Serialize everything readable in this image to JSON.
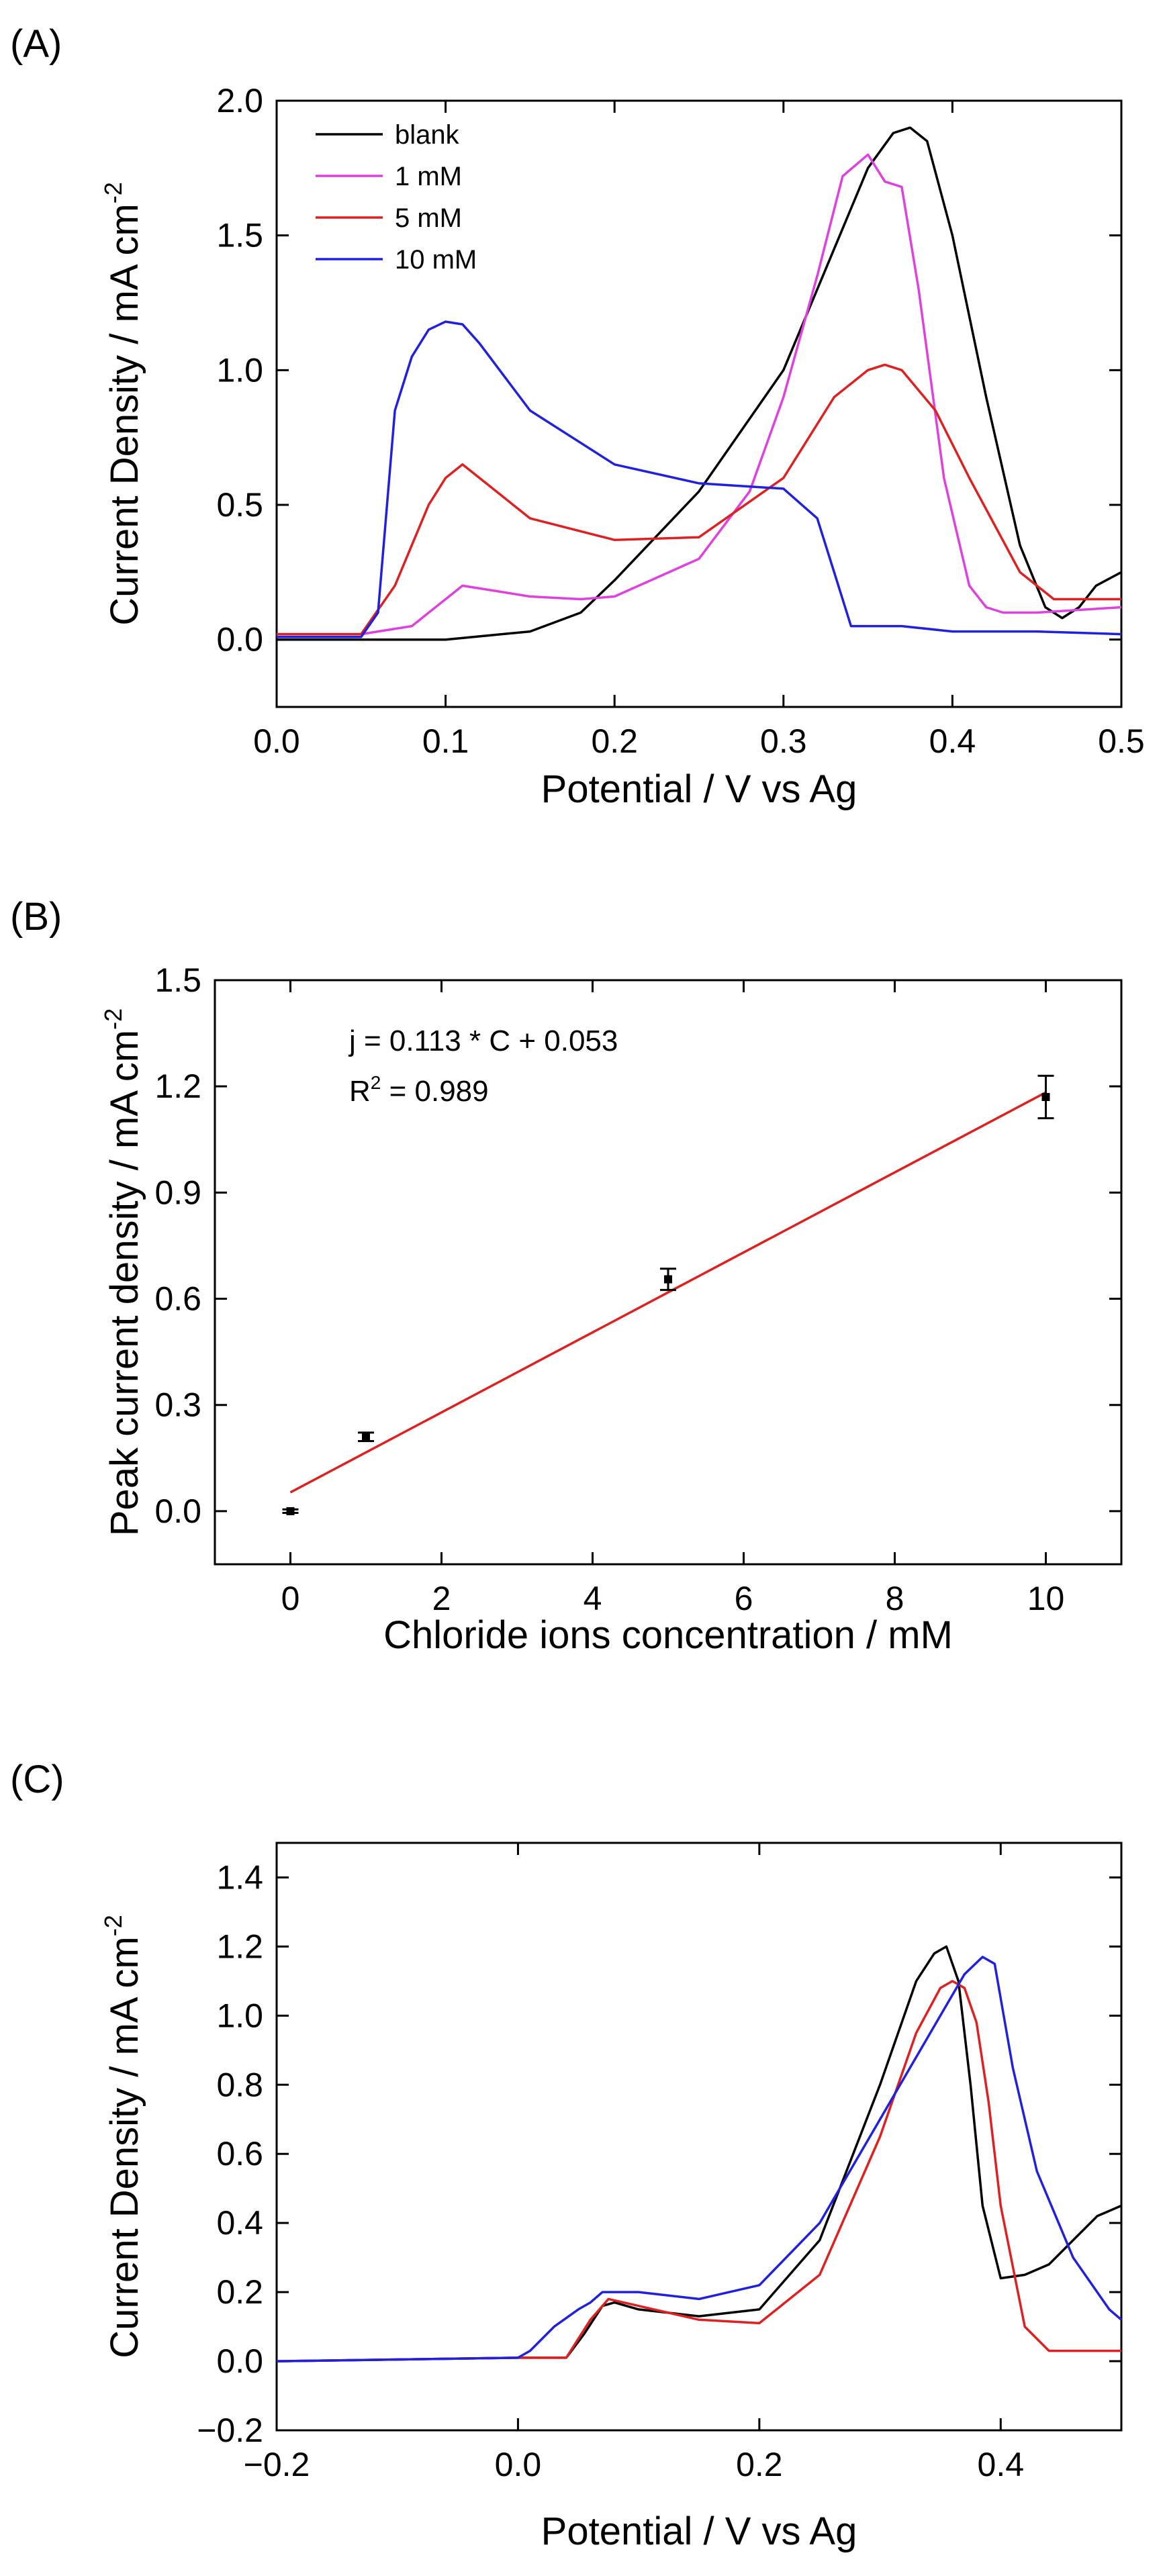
{
  "chart_data": [
    {
      "type": "line",
      "panel_label": "(A)",
      "xlabel": "Potential   / V vs Ag",
      "ylabel": "Current Density   /   mA cm",
      "ylabel_exp": "-2",
      "xlim": [
        0,
        0.5
      ],
      "ylim": [
        -0.25,
        2.0
      ],
      "xticks": [
        "0.0",
        "0.1",
        "0.2",
        "0.3",
        "0.4",
        "0.5"
      ],
      "yticks": [
        "0.0",
        "0.5",
        "1.0",
        "1.5",
        "2.0"
      ],
      "legend_position": "top-left",
      "series": [
        {
          "name": "blank",
          "color": "#000000",
          "x": [
            0,
            0.05,
            0.1,
            0.15,
            0.18,
            0.2,
            0.25,
            0.3,
            0.33,
            0.35,
            0.365,
            0.375,
            0.385,
            0.4,
            0.42,
            0.44,
            0.455,
            0.465,
            0.475,
            0.485,
            0.5
          ],
          "y": [
            0,
            0,
            0,
            0.03,
            0.1,
            0.22,
            0.55,
            1.0,
            1.45,
            1.75,
            1.88,
            1.9,
            1.85,
            1.5,
            0.9,
            0.35,
            0.12,
            0.08,
            0.12,
            0.2,
            0.25
          ]
        },
        {
          "name": "1 mM",
          "color": "#e040e0",
          "x": [
            0,
            0.05,
            0.08,
            0.1,
            0.11,
            0.13,
            0.15,
            0.18,
            0.2,
            0.25,
            0.28,
            0.3,
            0.32,
            0.335,
            0.35,
            0.36,
            0.37,
            0.38,
            0.395,
            0.41,
            0.42,
            0.43,
            0.45,
            0.5
          ],
          "y": [
            0.02,
            0.02,
            0.05,
            0.15,
            0.2,
            0.18,
            0.16,
            0.15,
            0.16,
            0.3,
            0.55,
            0.9,
            1.35,
            1.72,
            1.8,
            1.7,
            1.68,
            1.3,
            0.6,
            0.2,
            0.12,
            0.1,
            0.1,
            0.12
          ]
        },
        {
          "name": "5 mM",
          "color": "#e02020",
          "x": [
            0,
            0.05,
            0.07,
            0.09,
            0.1,
            0.11,
            0.13,
            0.15,
            0.2,
            0.25,
            0.3,
            0.33,
            0.35,
            0.36,
            0.37,
            0.39,
            0.41,
            0.44,
            0.46,
            0.5
          ],
          "y": [
            0.02,
            0.02,
            0.2,
            0.5,
            0.6,
            0.65,
            0.55,
            0.45,
            0.37,
            0.38,
            0.6,
            0.9,
            1.0,
            1.02,
            1.0,
            0.85,
            0.6,
            0.25,
            0.15,
            0.15
          ]
        },
        {
          "name": "10 mM",
          "color": "#2020e0",
          "x": [
            0,
            0.05,
            0.06,
            0.07,
            0.08,
            0.09,
            0.1,
            0.11,
            0.12,
            0.15,
            0.2,
            0.25,
            0.3,
            0.32,
            0.33,
            0.34,
            0.35,
            0.37,
            0.4,
            0.45,
            0.5
          ],
          "y": [
            0.01,
            0.01,
            0.1,
            0.85,
            1.05,
            1.15,
            1.18,
            1.17,
            1.1,
            0.85,
            0.65,
            0.58,
            0.56,
            0.45,
            0.25,
            0.05,
            0.05,
            0.05,
            0.03,
            0.03,
            0.02
          ]
        }
      ]
    },
    {
      "type": "scatter",
      "panel_label": "(B)",
      "xlabel": "Chloride ions concentration   /   mM",
      "ylabel": "Peak current density   /   mA cm",
      "ylabel_exp": "-2",
      "xlim": [
        -1,
        11
      ],
      "ylim": [
        -0.15,
        1.5
      ],
      "xticks": [
        "0",
        "2",
        "4",
        "6",
        "8",
        "10"
      ],
      "xtick_values": [
        0,
        2,
        4,
        6,
        8,
        10
      ],
      "yticks": [
        "0.0",
        "0.3",
        "0.6",
        "0.9",
        "1.2",
        "1.5"
      ],
      "ytick_values": [
        0,
        0.3,
        0.6,
        0.9,
        1.2,
        1.5
      ],
      "points": [
        {
          "x": 0,
          "y": 0.0,
          "err": 0.005
        },
        {
          "x": 1,
          "y": 0.21,
          "err": 0.012
        },
        {
          "x": 5,
          "y": 0.655,
          "err": 0.03
        },
        {
          "x": 10,
          "y": 1.17,
          "err": 0.06
        }
      ],
      "fit": {
        "slope": 0.113,
        "intercept": 0.053,
        "x_range": [
          0,
          10
        ],
        "color": "#e02020"
      },
      "equation": "j = 0.113 * C + 0.053",
      "r2_label": "R",
      "r2_exp": "2",
      "r2_value": " = 0.989"
    },
    {
      "type": "line",
      "panel_label": "(C)",
      "xlabel": "Potential   /   V vs Ag",
      "ylabel": "Current Density   /   mA cm",
      "ylabel_exp": "-2",
      "xlim": [
        -0.2,
        0.5
      ],
      "ylim": [
        -0.2,
        1.5
      ],
      "xticks": [
        "−0.2",
        "0.0",
        "0.2",
        "0.4"
      ],
      "xtick_values": [
        -0.2,
        0,
        0.2,
        0.4
      ],
      "yticks": [
        "−0.2",
        "0.0",
        "0.2",
        "0.4",
        "0.6",
        "0.8",
        "1.0",
        "1.2",
        "1.4"
      ],
      "ytick_values": [
        -0.2,
        0,
        0.2,
        0.4,
        0.6,
        0.8,
        1.0,
        1.2,
        1.4
      ],
      "series": [
        {
          "name": "black",
          "color": "#000000",
          "x": [
            -0.2,
            0.0,
            0.04,
            0.055,
            0.07,
            0.08,
            0.1,
            0.15,
            0.2,
            0.25,
            0.3,
            0.33,
            0.345,
            0.355,
            0.365,
            0.375,
            0.385,
            0.4,
            0.42,
            0.44,
            0.46,
            0.48,
            0.5
          ],
          "y": [
            0,
            0.01,
            0.01,
            0.08,
            0.16,
            0.17,
            0.15,
            0.13,
            0.15,
            0.35,
            0.8,
            1.1,
            1.18,
            1.2,
            1.1,
            0.8,
            0.45,
            0.24,
            0.25,
            0.28,
            0.35,
            0.42,
            0.45
          ]
        },
        {
          "name": "red",
          "color": "#e02020",
          "x": [
            -0.2,
            0.0,
            0.04,
            0.06,
            0.075,
            0.1,
            0.15,
            0.2,
            0.25,
            0.3,
            0.33,
            0.35,
            0.36,
            0.37,
            0.38,
            0.39,
            0.4,
            0.42,
            0.44,
            0.5
          ],
          "y": [
            0,
            0.01,
            0.01,
            0.12,
            0.18,
            0.16,
            0.12,
            0.11,
            0.25,
            0.65,
            0.95,
            1.08,
            1.1,
            1.08,
            0.98,
            0.75,
            0.45,
            0.1,
            0.03,
            0.03
          ]
        },
        {
          "name": "blue",
          "color": "#2020e0",
          "x": [
            -0.2,
            0.0,
            0.01,
            0.03,
            0.05,
            0.06,
            0.07,
            0.1,
            0.15,
            0.2,
            0.25,
            0.3,
            0.35,
            0.37,
            0.385,
            0.395,
            0.41,
            0.43,
            0.46,
            0.49,
            0.5
          ],
          "y": [
            0,
            0.01,
            0.03,
            0.1,
            0.15,
            0.17,
            0.2,
            0.2,
            0.18,
            0.22,
            0.4,
            0.7,
            1.0,
            1.12,
            1.17,
            1.15,
            0.85,
            0.55,
            0.3,
            0.15,
            0.12
          ]
        }
      ]
    }
  ]
}
